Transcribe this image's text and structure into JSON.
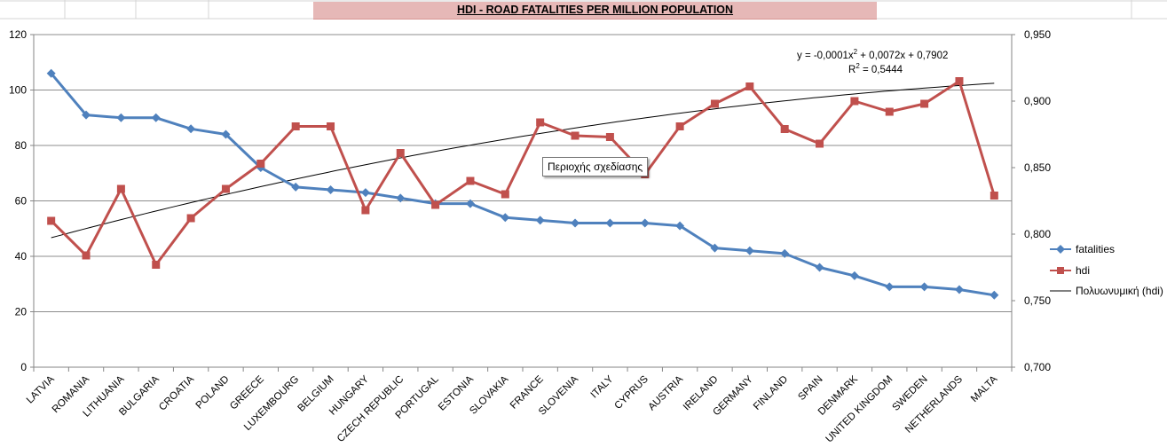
{
  "chart_title": "HDI - ROAD FATALITIES PER MILLION POPULATION",
  "tooltip": "Περιοχής σχεδίασης",
  "colors": {
    "fatalities": "#4f81bd",
    "hdi": "#c0504d",
    "trend": "#000000",
    "title_bg": "#e6b8b7"
  },
  "chart_data": {
    "type": "line",
    "title": "HDI - ROAD FATALITIES PER MILLION POPULATION",
    "categories": [
      "LATVIA",
      "ROMANIA",
      "LITHUANIA",
      "BULGARIA",
      "CROATIA",
      "POLAND",
      "GREECE",
      "LUXEMBOURG",
      "BELGIUM",
      "HUNGARY",
      "CZECH REPUBLIC",
      "PORTUGAL",
      "ESTONIA",
      "SLOVAKIA",
      "FRANCE",
      "SLOVENIA",
      "ITALY",
      "CYPRUS",
      "AUSTRIA",
      "IRELAND",
      "GERMANY",
      "FINLAND",
      "SPAIN",
      "DENMARK",
      "UNITED KINGDOM",
      "SWEDEN",
      "NETHERLANDS",
      "MALTA"
    ],
    "y_left": {
      "min": 0,
      "max": 120,
      "ticks": [
        "0",
        "20",
        "40",
        "60",
        "80",
        "100",
        "120"
      ]
    },
    "y_right": {
      "min": 0.7,
      "max": 0.95,
      "ticks": [
        "0,700",
        "0,750",
        "0,800",
        "0,850",
        "0,900",
        "0,950"
      ]
    },
    "grid": true,
    "legend_position": "right",
    "series": [
      {
        "name": "fatalities",
        "axis": "left",
        "marker": "diamond",
        "values": [
          106,
          91,
          90,
          90,
          86,
          84,
          72,
          65,
          64,
          63,
          61,
          59,
          59,
          54,
          53,
          52,
          52,
          52,
          51,
          43,
          42,
          41,
          36,
          33,
          29,
          29,
          28,
          26
        ]
      },
      {
        "name": "hdi",
        "axis": "right",
        "marker": "square",
        "values": [
          0.81,
          0.784,
          0.834,
          0.777,
          0.812,
          0.834,
          0.853,
          0.881,
          0.881,
          0.818,
          0.861,
          0.822,
          0.84,
          0.83,
          0.884,
          0.874,
          0.873,
          0.845,
          0.881,
          0.898,
          0.911,
          0.879,
          0.868,
          0.9,
          0.892,
          0.898,
          0.915,
          0.829
        ]
      }
    ],
    "trendline": {
      "name": "Πολυωνυμική (hdi)",
      "axis": "right",
      "coefficients": [
        -0.0001,
        0.0072,
        0.7902
      ],
      "equation_parts": {
        "a": "y = -0,0001x",
        "a_sup": "2",
        "b": " + 0,0072x + 0,7902"
      },
      "r2_parts": {
        "label": "R",
        "label_sup": "2",
        "value": " = 0,5444"
      }
    }
  }
}
